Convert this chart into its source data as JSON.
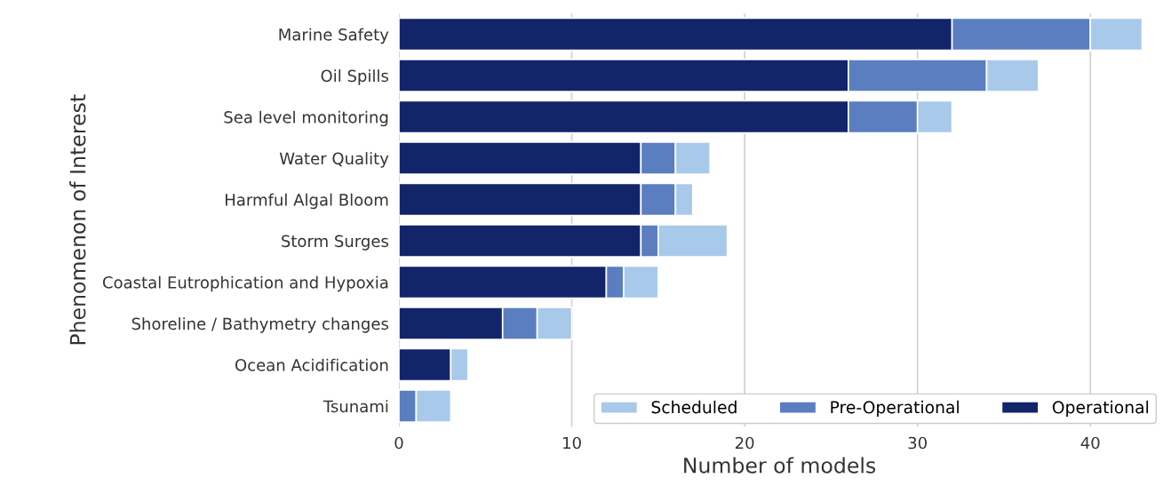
{
  "chart_data": {
    "type": "bar",
    "orientation": "horizontal",
    "stacked": true,
    "xlabel": "Number of models",
    "ylabel": "Phenomenon of Interest",
    "categories": [
      "Marine Safety",
      "Oil Spills",
      "Sea level monitoring",
      "Water Quality",
      "Harmful Algal Bloom",
      "Storm Surges",
      "Coastal Eutrophication and Hypoxia",
      "Shoreline / Bathymetry changes",
      "Ocean Acidification",
      "Tsunami"
    ],
    "series": [
      {
        "name": "Operational",
        "color": "#12246a",
        "values": [
          32,
          26,
          26,
          14,
          14,
          14,
          12,
          6,
          3,
          0
        ]
      },
      {
        "name": "Pre-Operational",
        "color": "#5a7ec0",
        "values": [
          8,
          8,
          4,
          2,
          2,
          1,
          1,
          2,
          0,
          1
        ]
      },
      {
        "name": "Scheduled",
        "color": "#a9c9eb",
        "values": [
          3,
          3,
          2,
          2,
          1,
          4,
          2,
          2,
          1,
          2
        ]
      }
    ],
    "xlim": [
      0,
      44
    ],
    "xticks": [
      0,
      10,
      20,
      30,
      40
    ],
    "grid": "x",
    "legend": "bottom right"
  }
}
